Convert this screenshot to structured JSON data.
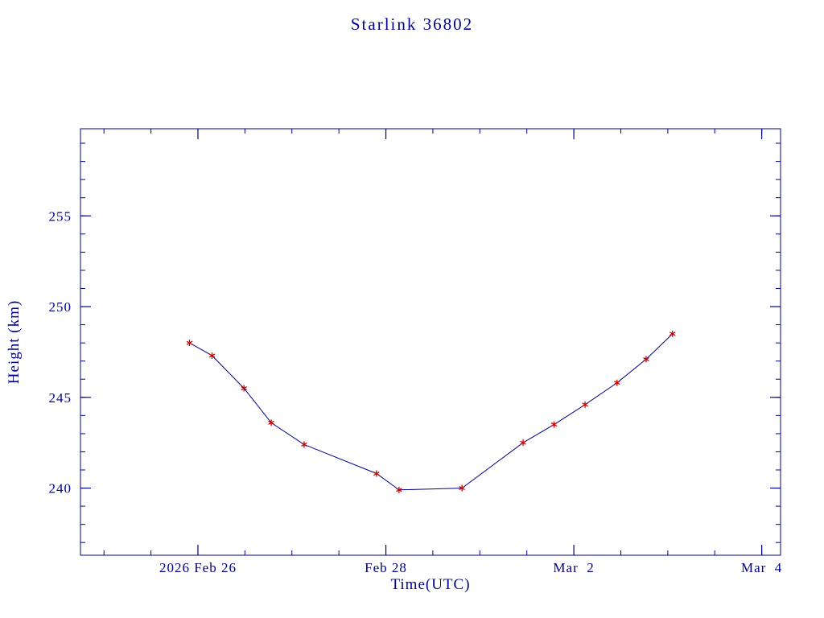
{
  "title": "Starlink 36802",
  "colors": {
    "axis": "#00008b",
    "text": "#00008b",
    "background": "#ffffff",
    "line": "#00008b",
    "marker": "#cc0000"
  },
  "chart_data": {
    "type": "line",
    "title": "Starlink 36802",
    "xlabel": "Time(UTC)",
    "ylabel": "Height (km)",
    "x_units": "days since 2026 Feb 26 00:00 UTC",
    "xlim": [
      -1.25,
      6.2
    ],
    "ylim": [
      236.3,
      259.8
    ],
    "x_major_ticks": [
      0,
      2,
      4,
      6
    ],
    "x_tick_labels": [
      "2026 Feb 26",
      "Feb 28",
      "Mar  2",
      "Mar  4"
    ],
    "x_minor_step": 0.5,
    "y_major_ticks": [
      240,
      245,
      250,
      255
    ],
    "y_minor_step": 1,
    "grid": false,
    "legend": "none",
    "series": [
      {
        "name": "height",
        "color": "#00008b",
        "marker": "asterisk",
        "marker_color": "#cc0000",
        "x": [
          -0.09,
          0.15,
          0.49,
          0.78,
          1.13,
          1.9,
          2.14,
          2.81,
          3.46,
          3.79,
          4.12,
          4.46,
          4.77,
          5.05
        ],
        "y": [
          248.0,
          247.3,
          245.5,
          243.6,
          242.4,
          240.8,
          239.9,
          240.0,
          242.5,
          243.5,
          244.6,
          245.8,
          247.1,
          248.5
        ]
      }
    ]
  }
}
